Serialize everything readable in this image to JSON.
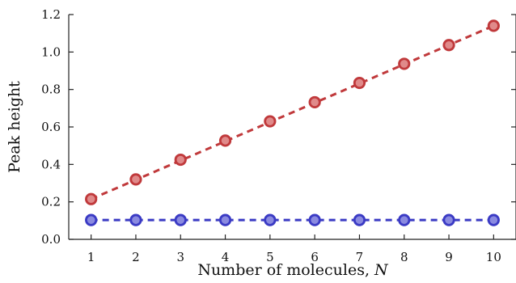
{
  "chart_data": {
    "type": "line",
    "title": "",
    "xlabel": "Number of molecules, ",
    "xlabel_var": "N",
    "ylabel": "Peak height",
    "x": [
      1,
      2,
      3,
      4,
      5,
      6,
      7,
      8,
      9,
      10
    ],
    "xticks": [
      "1",
      "2",
      "3",
      "4",
      "5",
      "6",
      "7",
      "8",
      "9",
      "10"
    ],
    "xlim": [
      0.5,
      10.5
    ],
    "ylim": [
      0.0,
      1.2
    ],
    "yticks": [
      "0.0",
      "0.2",
      "0.4",
      "0.6",
      "0.8",
      "1.0",
      "1.2"
    ],
    "ytick_values": [
      0.0,
      0.2,
      0.4,
      0.6,
      0.8,
      1.0,
      1.2
    ],
    "grid": false,
    "legend": "none",
    "series": [
      {
        "values": [
          0.215,
          0.32,
          0.425,
          0.527,
          0.63,
          0.732,
          0.835,
          0.937,
          1.037,
          1.14
        ],
        "color": "#c0393b",
        "fill": "#e08a8a",
        "line_style": "dashed",
        "trend": [
          0.215,
          1.14
        ]
      },
      {
        "values": [
          0.103,
          0.103,
          0.103,
          0.103,
          0.103,
          0.103,
          0.103,
          0.103,
          0.103,
          0.103
        ],
        "color": "#3a3ac4",
        "fill": "#8a8ae0",
        "line_style": "dashed",
        "trend": [
          0.103,
          0.103
        ]
      }
    ]
  }
}
